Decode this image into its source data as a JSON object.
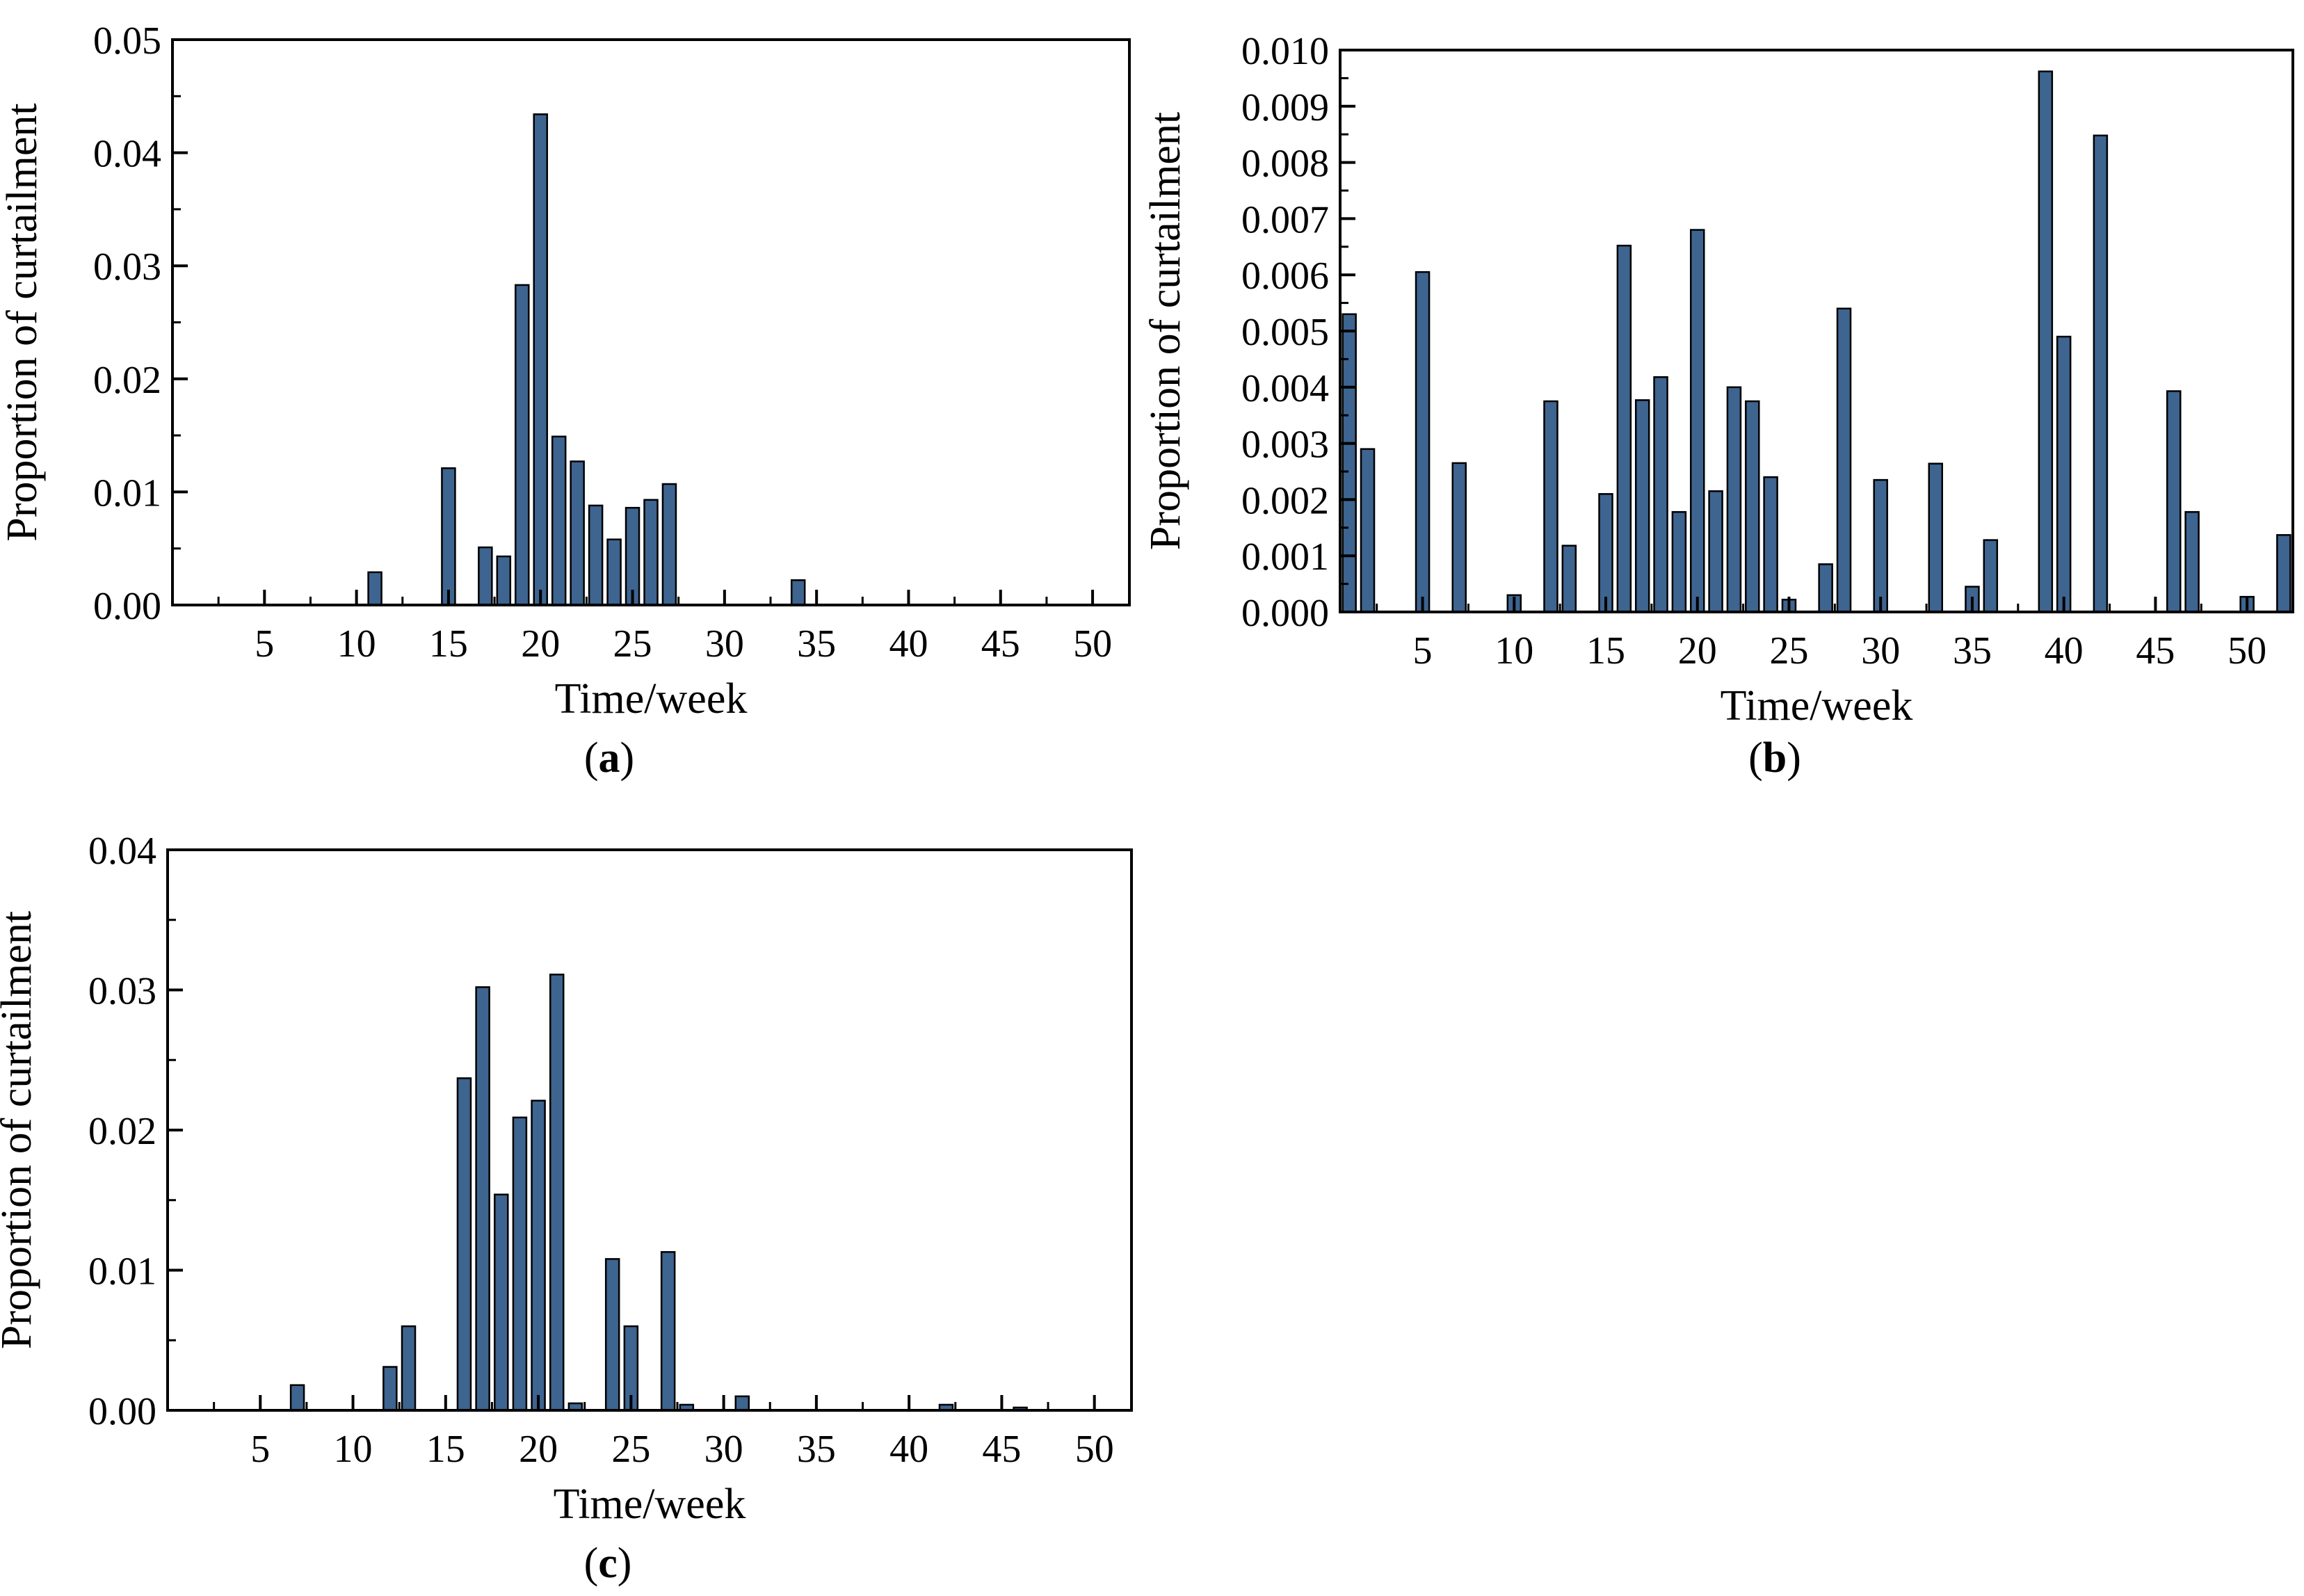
{
  "bar_color": "#3e6490",
  "chart_data": [
    {
      "type": "bar",
      "id": "a",
      "panel_label": "a",
      "xlabel": "Time/week",
      "ylabel": "Proportion of curtailment",
      "xlim": [
        0,
        52
      ],
      "ylim": [
        0,
        0.05
      ],
      "xticks": [
        5,
        10,
        15,
        20,
        25,
        30,
        35,
        40,
        45,
        50
      ],
      "yticks": [
        0,
        0.01,
        0.02,
        0.03,
        0.04,
        0.05
      ],
      "ytick_labels": [
        "0.00",
        "0.01",
        "0.02",
        "0.03",
        "0.04",
        "0.05"
      ],
      "weeks": [
        11,
        15,
        17,
        18,
        19,
        20,
        21,
        22,
        23,
        24,
        25,
        26,
        27,
        34
      ],
      "values": [
        0.0029,
        0.0121,
        0.0051,
        0.0043,
        0.0283,
        0.0434,
        0.0149,
        0.0127,
        0.0088,
        0.0058,
        0.0086,
        0.0093,
        0.0107,
        0.0022
      ]
    },
    {
      "type": "bar",
      "id": "b",
      "panel_label": "b",
      "xlabel": "Time/week",
      "ylabel": "Proportion of curtailment",
      "xlim": [
        0.5,
        52.5
      ],
      "ylim": [
        0,
        0.01
      ],
      "xticks": [
        5,
        10,
        15,
        20,
        25,
        30,
        35,
        40,
        45,
        50
      ],
      "yticks": [
        0,
        0.001,
        0.002,
        0.003,
        0.004,
        0.005,
        0.006,
        0.007,
        0.008,
        0.009,
        0.01
      ],
      "ytick_labels": [
        "0.000",
        "0.001",
        "0.002",
        "0.003",
        "0.004",
        "0.005",
        "0.006",
        "0.007",
        "0.008",
        "0.009",
        "0.010"
      ],
      "weeks": [
        1,
        2,
        5,
        7,
        10,
        12,
        13,
        15,
        16,
        17,
        18,
        19,
        20,
        21,
        22,
        23,
        24,
        25,
        27,
        28,
        30,
        33,
        35,
        36,
        39,
        40,
        42,
        46,
        47,
        50,
        52
      ],
      "values": [
        0.0053,
        0.0029,
        0.00605,
        0.00265,
        0.0003,
        0.00375,
        0.00118,
        0.0021,
        0.00652,
        0.00377,
        0.00418,
        0.00178,
        0.0068,
        0.00215,
        0.004,
        0.00375,
        0.0024,
        0.00022,
        0.00085,
        0.0054,
        0.00235,
        0.00264,
        0.00045,
        0.00128,
        0.00962,
        0.0049,
        0.00848,
        0.00393,
        0.00178,
        0.00027,
        0.00137
      ]
    },
    {
      "type": "bar",
      "id": "c",
      "panel_label": "c",
      "xlabel": "Time/week",
      "ylabel": "Proportion of curtailment",
      "xlim": [
        0,
        52
      ],
      "ylim": [
        0,
        0.04
      ],
      "xticks": [
        5,
        10,
        15,
        20,
        25,
        30,
        35,
        40,
        45,
        50
      ],
      "yticks": [
        0,
        0.01,
        0.02,
        0.03,
        0.04
      ],
      "ytick_labels": [
        "0.00",
        "0.01",
        "0.02",
        "0.03",
        "0.04"
      ],
      "weeks": [
        7,
        12,
        13,
        16,
        17,
        18,
        19,
        20,
        21,
        22,
        24,
        25,
        27,
        28,
        31,
        42,
        46
      ],
      "values": [
        0.0018,
        0.0031,
        0.006,
        0.0237,
        0.0302,
        0.0154,
        0.0209,
        0.0221,
        0.0311,
        0.0005,
        0.0108,
        0.006,
        0.0113,
        0.0004,
        0.001,
        0.0004,
        0.0002
      ]
    }
  ]
}
